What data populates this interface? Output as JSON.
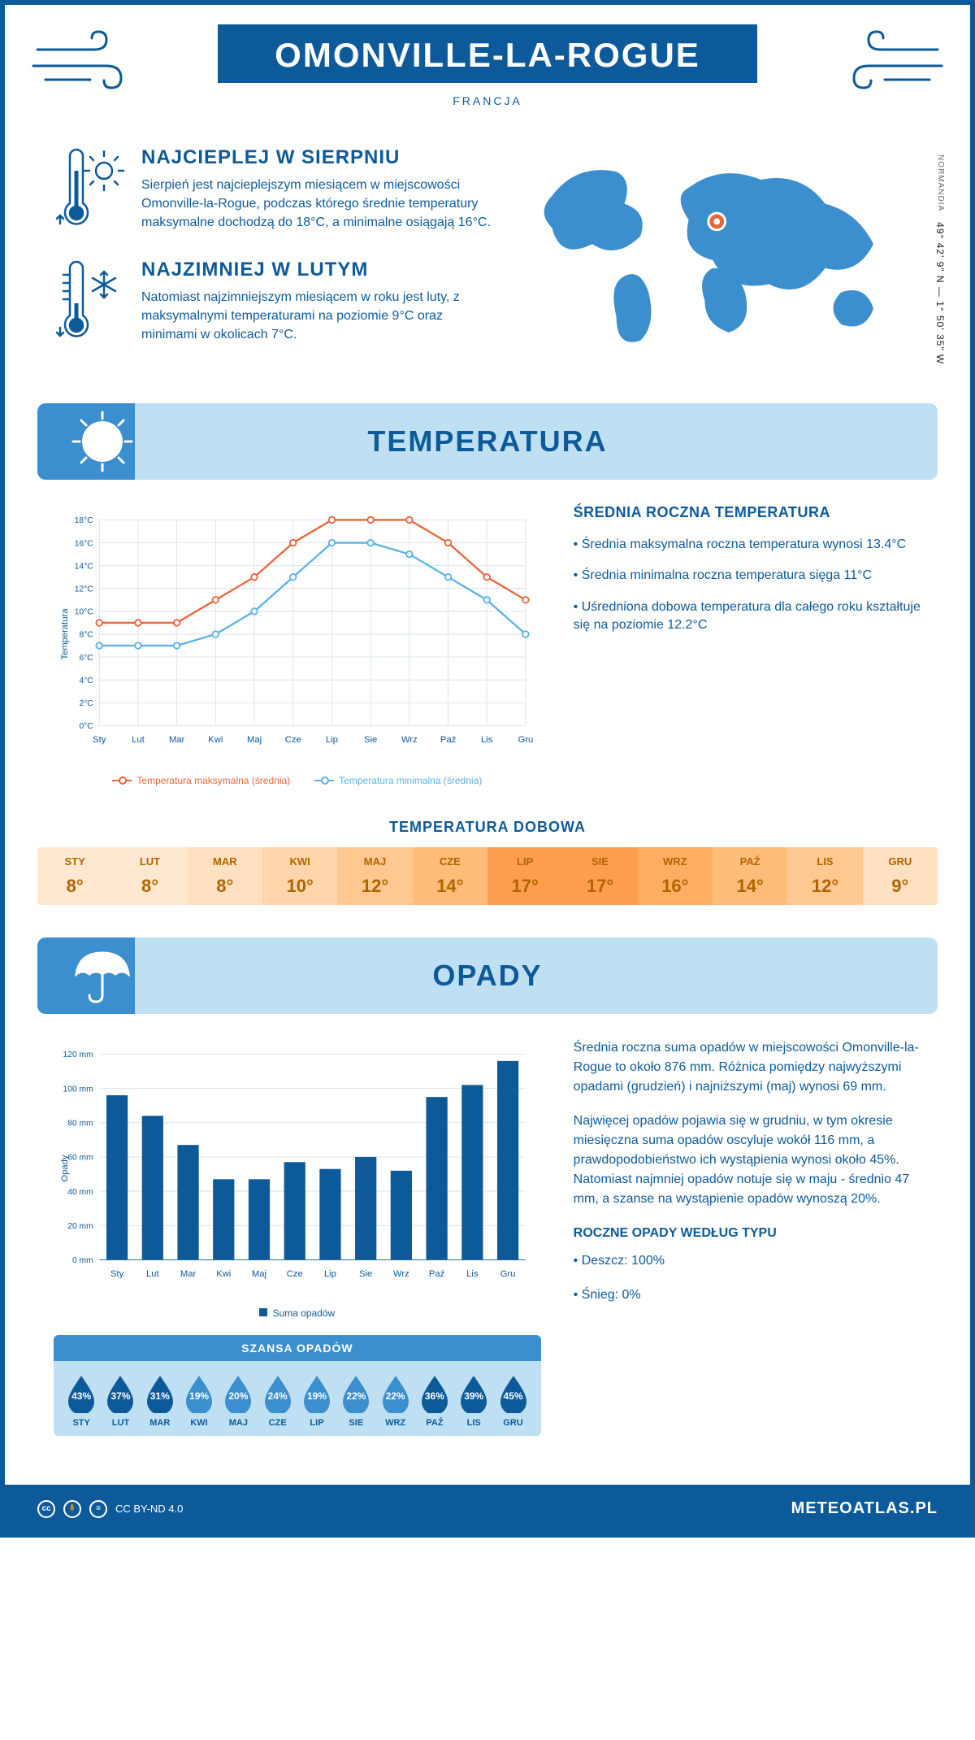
{
  "header": {
    "title": "OMONVILLE-LA-ROGUE",
    "country": "FRANCJA"
  },
  "coords": {
    "lat": "49° 42' 9\" N",
    "lon": "1° 50' 35\" W",
    "region": "NORMANDIA"
  },
  "intro": {
    "warm": {
      "title": "NAJCIEPLEJ W SIERPNIU",
      "text": "Sierpień jest najcieplejszym miesiącem w miejscowości Omonville-la-Rogue, podczas którego średnie temperatury maksymalne dochodzą do 18°C, a minimalne osiągają 16°C."
    },
    "cold": {
      "title": "NAJZIMNIEJ W LUTYM",
      "text": "Natomiast najzimniejszym miesiącem w roku jest luty, z maksymalnymi temperaturami na poziomie 9°C oraz minimami w okolicach 7°C."
    }
  },
  "colors": {
    "primary": "#0d5a9a",
    "light_blue": "#bfe0f3",
    "mid_blue": "#3b8fce",
    "line_max": "#e8663c",
    "line_min": "#5eb3e4",
    "grid": "#d9e3ec",
    "drop_dark": "#0d5a9a",
    "drop_light": "#3b8fce"
  },
  "months": [
    "Sty",
    "Lut",
    "Mar",
    "Kwi",
    "Maj",
    "Cze",
    "Lip",
    "Sie",
    "Wrz",
    "Paź",
    "Lis",
    "Gru"
  ],
  "months_upper": [
    "STY",
    "LUT",
    "MAR",
    "KWI",
    "MAJ",
    "CZE",
    "LIP",
    "SIE",
    "WRZ",
    "PAŹ",
    "LIS",
    "GRU"
  ],
  "temperature": {
    "section_title": "TEMPERATURA",
    "y_label": "Temperatura",
    "ylim": [
      0,
      18
    ],
    "ytick_step": 2,
    "max_series": [
      9,
      9,
      9,
      11,
      13,
      16,
      18,
      18,
      18,
      16,
      13,
      11
    ],
    "min_series": [
      7,
      7,
      7,
      8,
      10,
      13,
      16,
      16,
      15,
      13,
      11,
      8
    ],
    "legend_max": "Temperatura maksymalna (średnia)",
    "legend_min": "Temperatura minimalna (średnia)",
    "side_title": "ŚREDNIA ROCZNA TEMPERATURA",
    "side_points": [
      "• Średnia maksymalna roczna temperatura wynosi 13.4°C",
      "• Średnia minimalna roczna temperatura sięga 11°C",
      "• Uśredniona dobowa temperatura dla całego roku kształtuje się na poziomie 12.2°C"
    ]
  },
  "daily": {
    "title": "TEMPERATURA DOBOWA",
    "values": [
      8,
      8,
      8,
      10,
      12,
      14,
      17,
      17,
      16,
      14,
      12,
      9
    ],
    "colors": [
      "#ffe8cf",
      "#ffe8cf",
      "#ffe0c0",
      "#ffd5ab",
      "#ffc890",
      "#ffbb78",
      "#ff9d4f",
      "#ff9d4f",
      "#ffad63",
      "#ffbb78",
      "#ffc890",
      "#ffe0c0"
    ]
  },
  "precipitation": {
    "section_title": "OPADY",
    "y_label": "Opady",
    "ylim": [
      0,
      120
    ],
    "ytick_step": 20,
    "values": [
      96,
      84,
      67,
      47,
      47,
      57,
      53,
      60,
      52,
      95,
      102,
      116
    ],
    "bar_color": "#0d5a9a",
    "legend": "Suma opadów",
    "side_p1": "Średnia roczna suma opadów w miejscowości Omonville-la-Rogue to około 876 mm. Różnica pomiędzy najwyższymi opadami (grudzień) i najniższymi (maj) wynosi 69 mm.",
    "side_p2": "Najwięcej opadów pojawia się w grudniu, w tym okresie miesięczna suma opadów oscyluje wokół 116 mm, a prawdopodobieństwo ich wystąpienia wynosi około 45%. Natomiast najmniej opadów notuje się w maju - średnio 47 mm, a szanse na wystąpienie opadów wynoszą 20%.",
    "type_title": "ROCZNE OPADY WEDŁUG TYPU",
    "type_lines": [
      "• Deszcz: 100%",
      "• Śnieg: 0%"
    ]
  },
  "chance": {
    "title": "SZANSA OPADÓW",
    "values": [
      43,
      37,
      31,
      19,
      20,
      24,
      19,
      22,
      22,
      36,
      39,
      45
    ],
    "shades": [
      "dark",
      "dark",
      "dark",
      "light",
      "light",
      "light",
      "light",
      "light",
      "light",
      "dark",
      "dark",
      "dark"
    ]
  },
  "footer": {
    "license": "CC BY-ND 4.0",
    "site": "METEOATLAS.PL"
  }
}
